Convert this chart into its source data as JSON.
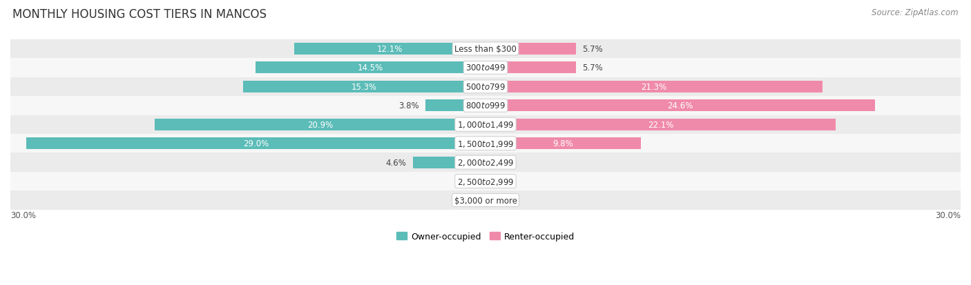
{
  "title": "MONTHLY HOUSING COST TIERS IN MANCOS",
  "source": "Source: ZipAtlas.com",
  "categories": [
    "Less than $300",
    "$300 to $499",
    "$500 to $799",
    "$800 to $999",
    "$1,000 to $1,499",
    "$1,500 to $1,999",
    "$2,000 to $2,499",
    "$2,500 to $2,999",
    "$3,000 or more"
  ],
  "owner_values": [
    12.1,
    14.5,
    15.3,
    3.8,
    20.9,
    29.0,
    4.6,
    0.0,
    0.0
  ],
  "renter_values": [
    5.7,
    5.7,
    21.3,
    24.6,
    22.1,
    9.8,
    0.0,
    0.0,
    0.0
  ],
  "owner_color": "#5bbcb8",
  "renter_color": "#f08aaa",
  "owner_label": "Owner-occupied",
  "renter_label": "Renter-occupied",
  "x_max": 30.0,
  "bar_height": 0.62,
  "row_colors": [
    "#ebebeb",
    "#f7f7f7"
  ],
  "title_fontsize": 12,
  "source_fontsize": 8.5,
  "label_fontsize": 8.5,
  "category_fontsize": 8.5,
  "inside_label_threshold": 8.0
}
